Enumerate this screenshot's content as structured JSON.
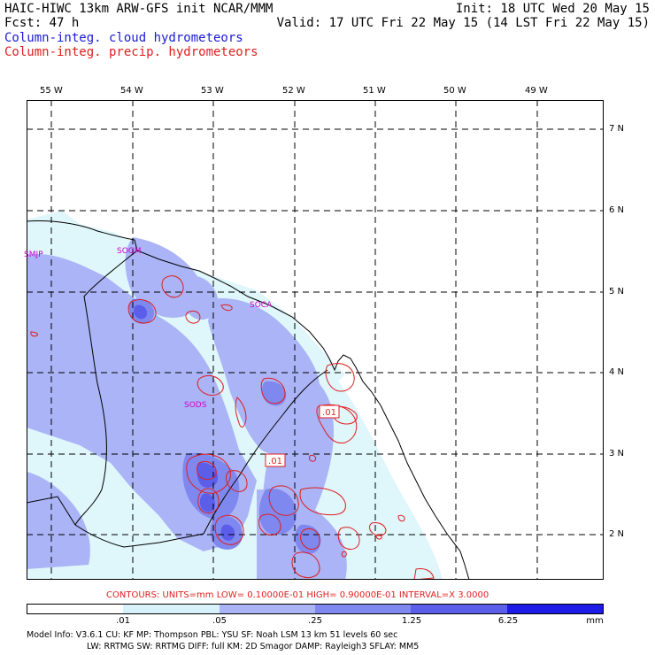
{
  "header": {
    "line1_left": "HAIC-HIWC 13km ARW-GFS init   NCAR/MMM",
    "line1_right": "Init: 18 UTC Wed 20 May 15",
    "line2_left": "Fcst:   47 h",
    "line2_right": "Valid: 17 UTC Fri 22 May 15 (14 LST Fri 22 May 15)",
    "field_cloud": "Column-integ. cloud hydrometeors",
    "field_precip": "Column-integ. precip. hydrometeors"
  },
  "colors": {
    "cloud_text": "#1a1ad6",
    "precip_text": "#e01e1e",
    "station_text": "#cc00cc",
    "shade_1": "#dff6fb",
    "shade_2": "#aab4f6",
    "shade_3": "#7f88ef",
    "shade_4": "#5b5ee8",
    "shade_5": "#3838e6",
    "shade_6": "#1414e0"
  },
  "map": {
    "lon_labels": [
      "55 W",
      "54 W",
      "53 W",
      "52 W",
      "51 W",
      "50 W",
      "49 W"
    ],
    "lat_labels": [
      "7 N",
      "6 N",
      "5 N",
      "4 N",
      "3 N",
      "2 N"
    ],
    "stations": [
      {
        "name": "SMJP"
      },
      {
        "name": "SOGM"
      },
      {
        "name": "SOCA"
      },
      {
        "name": "SODS"
      }
    ],
    "contour_labels": [
      ".01",
      ".01"
    ]
  },
  "contours_caption": "CONTOURS:  UNITS=mm  LOW= 0.10000E-01  HIGH= 0.90000E-01  INTERVAL=X  3.0000",
  "legend": {
    "levels": [
      ".01",
      ".05",
      ".25",
      "1.25",
      "6.25"
    ],
    "units": "mm"
  },
  "model_info": {
    "line1": "Model Info: V3.6.1   CU: KF     MP: Thompson   PBL: YSU      SF: Noah LSM    13 km   51 levels   60 sec",
    "line2": "LW: RRTMG   SW: RRTMG  DIFF: full   KM: 2D Smagor DAMP: Rayleigh3  SFLAY: MM5"
  }
}
